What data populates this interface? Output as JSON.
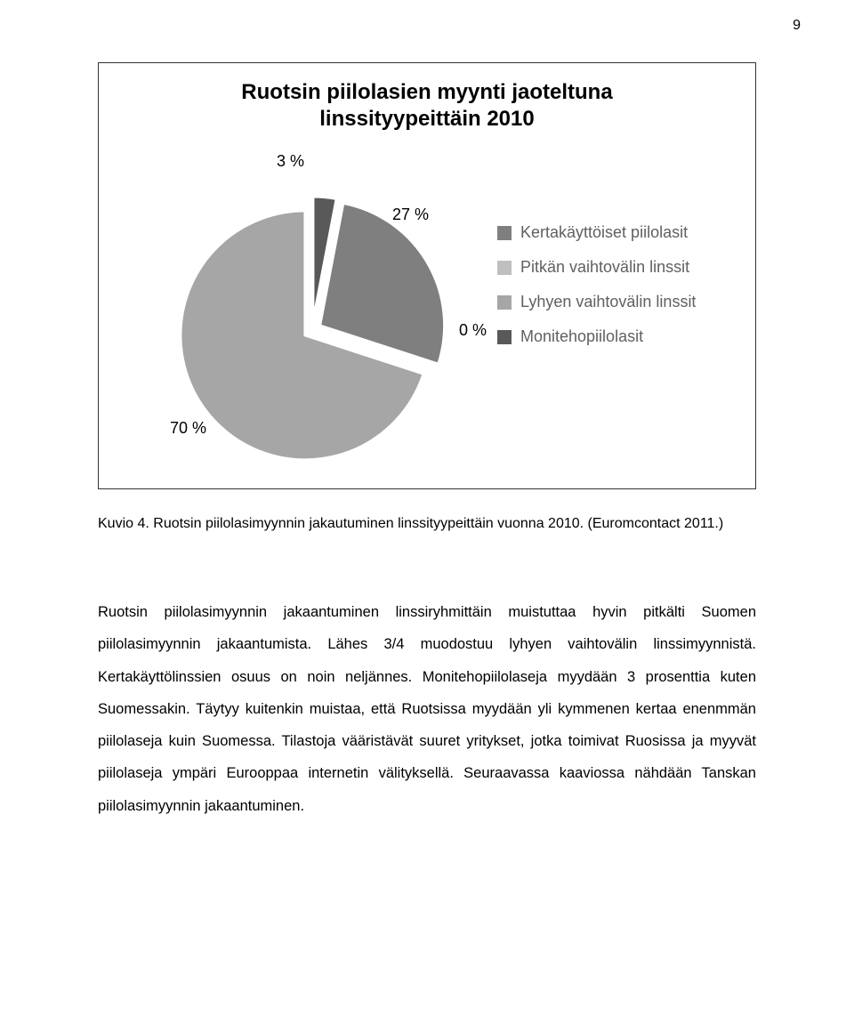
{
  "page_number": "9",
  "chart": {
    "type": "pie",
    "title_line1": "Ruotsin piilolasien myynti jaoteltuna",
    "title_line2": "linssityypeittäin 2010",
    "title_fontsize": 24,
    "title_fontweight": "bold",
    "background_color": "#ffffff",
    "border_color": "#333333",
    "explode_gap": 10,
    "slices": [
      {
        "label": "Kertakäyttöiset piilolasit",
        "value": 27,
        "display": "27 %",
        "color": "#7f7f7f"
      },
      {
        "label": "Pitkän vaihtovälin linssit",
        "value": 0,
        "display": "0 %",
        "color": "#bfbfbf"
      },
      {
        "label": "Lyhyen vaihtovälin linssit",
        "value": 70,
        "display": "70 %",
        "color": "#a6a6a6"
      },
      {
        "label": "Monitehopiilolasit",
        "value": 3,
        "display": "3 %",
        "color": "#595959"
      }
    ],
    "legend_text_color": "#606060",
    "legend_fontsize": 18,
    "datalabel_fontsize": 18,
    "datalabel_color": "#000000"
  },
  "caption": "Kuvio 4. Ruotsin piilolasimyynnin jakautuminen linssityypeittäin vuonna 2010. (Euromcontact 2011.)",
  "body": "Ruotsin piilolasimyynnin jakaantuminen linssiryhmittäin muistuttaa hyvin pitkälti Suomen piilolasimyynnin jakaantumista. Lähes 3/4 muodostuu lyhyen vaihtovälin linssimyynnistä. Kertakäyttölinssien osuus on noin neljännes. Monitehopiilolaseja myydään 3 prosenttia kuten Suomessakin. Täytyy kuitenkin muistaa, että Ruotsissa myydään yli kymmenen kertaa enenmmän piilolaseja kuin Suomessa. Tilastoja vääristävät suuret yritykset, jotka toimivat Ruosissa ja myyvät piilolaseja ympäri Eurooppaa internetin välityksellä. Seuraavassa kaaviossa nähdään Tanskan piilolasimyynnin jakaantuminen."
}
